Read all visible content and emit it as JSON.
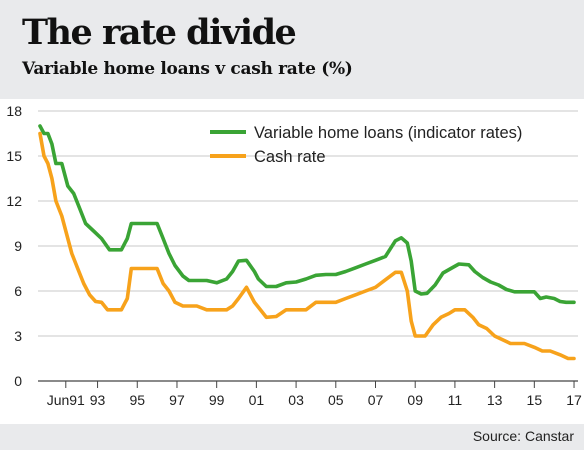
{
  "header": {
    "title": "The rate divide",
    "subtitle": "Variable home loans v cash rate (%)"
  },
  "footer": {
    "source": "Source: Canstar"
  },
  "chart_data": {
    "type": "line",
    "title": "The rate divide",
    "subtitle": "Variable home loans v cash rate (%)",
    "xlabel": "",
    "ylabel": "",
    "xlim": [
      1990,
      2017.2
    ],
    "ylim": [
      0,
      18
    ],
    "yticks": [
      0,
      3,
      6,
      9,
      12,
      15,
      18
    ],
    "xticks": [
      {
        "value": 1991.4,
        "label": "Jun91"
      },
      {
        "value": 1993,
        "label": "93"
      },
      {
        "value": 1995,
        "label": "95"
      },
      {
        "value": 1997,
        "label": "97"
      },
      {
        "value": 1999,
        "label": "99"
      },
      {
        "value": 2001,
        "label": "01"
      },
      {
        "value": 2003,
        "label": "03"
      },
      {
        "value": 2005,
        "label": "05"
      },
      {
        "value": 2007,
        "label": "07"
      },
      {
        "value": 2009,
        "label": "09"
      },
      {
        "value": 2011,
        "label": "11"
      },
      {
        "value": 2013,
        "label": "13"
      },
      {
        "value": 2015,
        "label": "15"
      },
      {
        "value": 2017,
        "label": "17"
      }
    ],
    "grid": "horizontal",
    "legend": "top-right",
    "series": [
      {
        "name": "Variable home loans (indicator rates)",
        "color": "#3aa435",
        "x": [
          1990.1,
          1990.3,
          1990.5,
          1990.7,
          1990.9,
          1991.2,
          1991.5,
          1991.8,
          1992.1,
          1992.4,
          1992.8,
          1993.2,
          1993.6,
          1994.2,
          1994.5,
          1994.7,
          1995.2,
          1995.6,
          1996.0,
          1996.3,
          1996.6,
          1996.9,
          1997.3,
          1997.6,
          1998.0,
          1998.5,
          1999.0,
          1999.5,
          1999.8,
          2000.1,
          2000.5,
          2000.9,
          2001.1,
          2001.5,
          2002.0,
          2002.5,
          2003.0,
          2003.5,
          2004.0,
          2004.5,
          2005.0,
          2005.5,
          2006.0,
          2006.5,
          2007.0,
          2007.5,
          2008.0,
          2008.3,
          2008.6,
          2008.8,
          2009.0,
          2009.3,
          2009.6,
          2010.0,
          2010.4,
          2010.8,
          2011.2,
          2011.7,
          2012.0,
          2012.4,
          2012.8,
          2013.2,
          2013.6,
          2014.0,
          2014.5,
          2015.0,
          2015.3,
          2015.6,
          2016.0,
          2016.3,
          2016.6,
          2017.0
        ],
        "y": [
          17.0,
          16.5,
          16.5,
          15.8,
          14.5,
          14.5,
          13.0,
          12.5,
          11.5,
          10.5,
          10.0,
          9.5,
          8.75,
          8.75,
          9.5,
          10.5,
          10.5,
          10.5,
          10.5,
          9.5,
          8.5,
          7.7,
          7.0,
          6.7,
          6.7,
          6.7,
          6.55,
          6.8,
          7.3,
          8.0,
          8.05,
          7.3,
          6.8,
          6.3,
          6.3,
          6.55,
          6.6,
          6.8,
          7.05,
          7.1,
          7.1,
          7.3,
          7.55,
          7.8,
          8.05,
          8.3,
          9.35,
          9.55,
          9.2,
          8.0,
          6.0,
          5.8,
          5.85,
          6.4,
          7.2,
          7.5,
          7.8,
          7.75,
          7.3,
          6.9,
          6.6,
          6.4,
          6.1,
          5.95,
          5.95,
          5.95,
          5.5,
          5.6,
          5.5,
          5.3,
          5.25,
          5.25
        ]
      },
      {
        "name": "Cash rate",
        "color": "#f7a21b",
        "x": [
          1990.1,
          1990.3,
          1990.5,
          1990.7,
          1990.9,
          1991.2,
          1991.4,
          1991.7,
          1992.0,
          1992.3,
          1992.6,
          1992.9,
          1993.2,
          1993.5,
          1993.8,
          1994.2,
          1994.5,
          1994.7,
          1995.0,
          1995.5,
          1996.0,
          1996.3,
          1996.6,
          1996.9,
          1997.3,
          1997.6,
          1998.0,
          1998.5,
          1999.0,
          1999.5,
          1999.8,
          2000.1,
          2000.5,
          2000.9,
          2001.2,
          2001.5,
          2002.0,
          2002.5,
          2003.0,
          2003.5,
          2004.0,
          2004.5,
          2005.0,
          2005.5,
          2006.0,
          2006.5,
          2007.0,
          2007.5,
          2008.0,
          2008.3,
          2008.6,
          2008.8,
          2009.0,
          2009.5,
          2009.9,
          2010.3,
          2010.7,
          2011.0,
          2011.5,
          2011.9,
          2012.2,
          2012.6,
          2013.0,
          2013.4,
          2013.8,
          2014.5,
          2015.0,
          2015.4,
          2015.8,
          2016.3,
          2016.7,
          2017.0
        ],
        "y": [
          16.5,
          15.0,
          14.5,
          13.5,
          12.0,
          11.0,
          10.0,
          8.5,
          7.5,
          6.5,
          5.75,
          5.3,
          5.25,
          4.75,
          4.75,
          4.75,
          5.5,
          7.5,
          7.5,
          7.5,
          7.5,
          6.5,
          6.0,
          5.25,
          5.0,
          5.0,
          5.0,
          4.75,
          4.75,
          4.75,
          5.0,
          5.5,
          6.25,
          5.25,
          4.75,
          4.25,
          4.3,
          4.75,
          4.75,
          4.75,
          5.25,
          5.25,
          5.25,
          5.5,
          5.75,
          6.0,
          6.25,
          6.75,
          7.25,
          7.25,
          6.0,
          4.0,
          3.0,
          3.0,
          3.75,
          4.25,
          4.5,
          4.75,
          4.75,
          4.25,
          3.75,
          3.5,
          3.0,
          2.75,
          2.5,
          2.5,
          2.25,
          2.0,
          2.0,
          1.75,
          1.5,
          1.5
        ]
      }
    ]
  }
}
